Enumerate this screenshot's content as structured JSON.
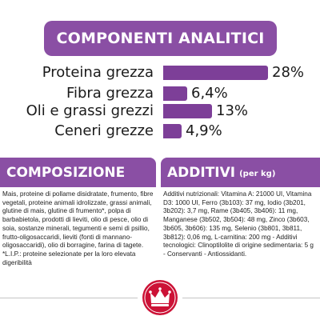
{
  "header": {
    "title": "COMPONENTI ANALITICI"
  },
  "chart_data": {
    "type": "bar",
    "categories": [
      "Proteina grezza",
      "Fibra grezza",
      "Oli e grassi grezzi",
      "Ceneri grezze"
    ],
    "values": [
      28,
      6.4,
      13,
      4.9
    ],
    "value_labels": [
      "28%",
      "6,4%",
      "13%",
      "4,9%"
    ],
    "bar_color": "#7d3f98"
  },
  "composizione": {
    "title": "COMPOSIZIONE",
    "text": "Mais, proteine di pollame disidratate, frumento, fibre vegetali, proteine animali idrolizzate, grassi animali, glutine di mais, glutine di frumento*, polpa di barbabietola, prodotti di lieviti, olio di pesce, olio di soia, sostanze minerali, tegumenti e semi di psillio, frutto-oligosaccaridi, lieviti (fonti di mannano-oligosaccaridi), olio di borragine, farina di tagete. *L.I.P.: proteine selezionate per la loro elevata digeribilità"
  },
  "additivi": {
    "title": "ADDITIVI",
    "unit": "(per kg)",
    "text": "Additivi nutrizionali: Vitamina A: 21000 UI, Vitamina D3: 1000 UI, Ferro (3b103): 37 mg, Iodio (3b201, 3b202): 3,7 mg, Rame (3b405, 3b406): 11 mg, Manganese (3b502, 3b504): 48 mg, Zinco (3b603, 3b605, 3b606): 135 mg, Selenio (3b801, 3b811, 3b812): 0,06 mg, L-carnitina: 200 mg - Additivi tecnologici: Clinoptilolite di origine sedimentaria: 5 g - Conservanti - Antiossidanti."
  },
  "brand": {
    "color": "#cc1236"
  }
}
